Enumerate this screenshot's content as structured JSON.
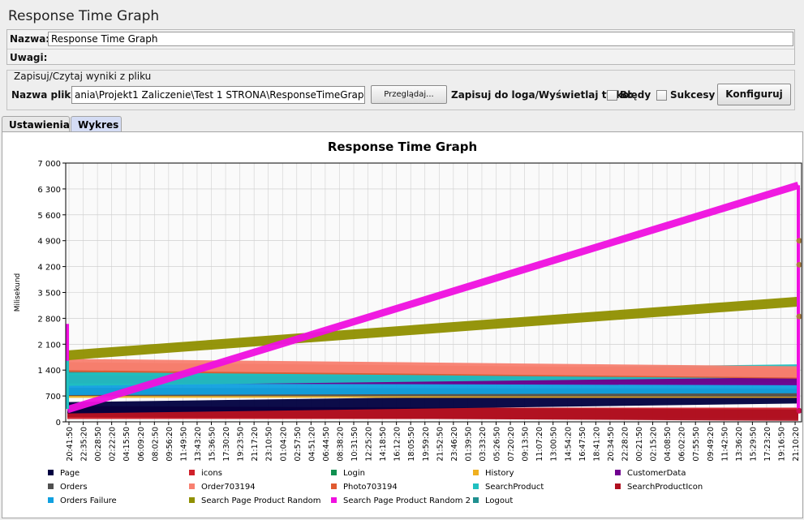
{
  "title": "Response Time Graph",
  "form": {
    "name_label": "Nazwa:",
    "name_value": "Response Time Graph",
    "comments_label": "Uwagi:"
  },
  "file": {
    "group_label": "Zapisuj/Czytaj wyniki z pliku",
    "filename_label": "Nazwa pliku",
    "filename_value": "ania\\Projekt1 Zaliczenie\\Test 1 STRONA\\ResponseTimeGraph.csv",
    "browse_label": "Przeglądaj...",
    "log_label": "Zapisuj do loga/Wyświetlaj tylko:",
    "errors_label": "Błędy",
    "success_label": "Sukcesy",
    "configure_label": "Konfiguruj"
  },
  "tabs": [
    {
      "label": "Ustawienia",
      "active": false
    },
    {
      "label": "Wykres",
      "active": true
    }
  ],
  "chart_data": {
    "type": "line",
    "title": "Response Time Graph",
    "ylabel": "Milisekund",
    "xlabel": "",
    "ylim": [
      0,
      7000
    ],
    "y_ticks": [
      "0",
      "700",
      "1 400",
      "2 100",
      "2 800",
      "3 500",
      "4 200",
      "4 900",
      "5 600",
      "6 300",
      "7 000"
    ],
    "grid": true,
    "x_tick_labels": [
      "20:41:50",
      "22:35:20",
      "00:28:50",
      "02:22:20",
      "04:15:50",
      "06:09:20",
      "08:02:50",
      "09:56:20",
      "11:49:50",
      "13:43:20",
      "15:36:50",
      "17:30:20",
      "19:23:50",
      "21:17:20",
      "23:10:50",
      "01:04:20",
      "02:57:50",
      "04:51:20",
      "06:44:50",
      "08:38:20",
      "10:31:50",
      "12:25:20",
      "14:18:50",
      "16:12:20",
      "18:05:50",
      "19:59:20",
      "21:52:50",
      "23:46:20",
      "01:39:50",
      "03:33:20",
      "05:26:50",
      "07:20:20",
      "09:13:50",
      "11:07:20",
      "13:00:50",
      "14:54:20",
      "16:47:50",
      "18:41:20",
      "20:34:50",
      "22:28:20",
      "00:21:50",
      "02:15:20",
      "04:08:50",
      "06:02:20",
      "07:55:50",
      "09:49:20",
      "11:42:50",
      "13:36:20",
      "15:29:50",
      "17:23:20",
      "19:16:50",
      "21:10:20"
    ],
    "legend_position": "bottom",
    "series": [
      {
        "name": "Page",
        "color": "#000040",
        "start": 380,
        "end": 650
      },
      {
        "name": "icons",
        "color": "#d0202a",
        "start": 230,
        "end": 230
      },
      {
        "name": "Login",
        "color": "#109050",
        "start": 1180,
        "end": 1200
      },
      {
        "name": "History",
        "color": "#f0b020",
        "start": 760,
        "end": 760
      },
      {
        "name": "CustomerData",
        "color": "#700090",
        "start": 1150,
        "end": 1100
      },
      {
        "name": "Orders",
        "color": "#505050",
        "start": 810,
        "end": 790
      },
      {
        "name": "Order703194",
        "color": "#f88070",
        "start": 1550,
        "end": 1350
      },
      {
        "name": "Photo703194",
        "color": "#e05a30",
        "start": 1480,
        "end": 1300
      },
      {
        "name": "SearchProduct",
        "color": "#20c0c0",
        "start": 1150,
        "end": 1380
      },
      {
        "name": "SearchProductIcon",
        "color": "#b01020",
        "start": 280,
        "end": 180
      },
      {
        "name": "Orders Failure",
        "color": "#10a0e0",
        "start": 900,
        "end": 950
      },
      {
        "name": "Search Page Product Random",
        "color": "#909000",
        "start": 1800,
        "end": 3250
      },
      {
        "name": "Search Page Product Random 2",
        "color": "#f010e0",
        "start": 330,
        "end": 6400
      },
      {
        "name": "Logout",
        "color": "#209090",
        "start": 1280,
        "end": 1300
      }
    ]
  }
}
